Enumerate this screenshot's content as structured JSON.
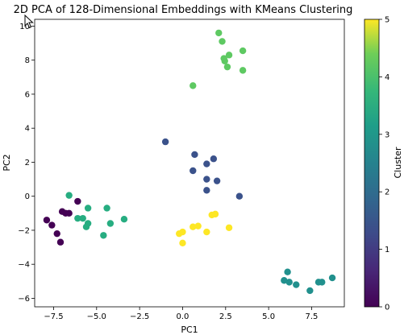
{
  "chart_data": {
    "type": "scatter",
    "title": "2D PCA of 128-Dimensional Embeddings with KMeans Clustering",
    "xlabel": "PC1",
    "ylabel": "PC2",
    "xlim": [
      -8.6,
      9.4
    ],
    "ylim": [
      -6.5,
      10.4
    ],
    "xticks": [
      -7.5,
      -5.0,
      -2.5,
      0.0,
      2.5,
      5.0,
      7.5
    ],
    "xtick_labels": [
      "−7.5",
      "−5.0",
      "−2.5",
      "0.0",
      "2.5",
      "5.0",
      "7.5"
    ],
    "yticks": [
      -6,
      -4,
      -2,
      0,
      2,
      4,
      6,
      8,
      10
    ],
    "ytick_labels": [
      "−6",
      "−4",
      "−2",
      "0",
      "2",
      "4",
      "6",
      "8",
      "10"
    ],
    "grid": false,
    "colorbar": {
      "label": "Cluster",
      "range": [
        0,
        5
      ],
      "ticks": [
        0,
        1,
        2,
        3,
        4,
        5
      ],
      "tick_labels": [
        "0",
        "1",
        "2",
        "3",
        "4",
        "5"
      ],
      "colormap": "viridis"
    },
    "points": [
      {
        "x": -7.9,
        "y": -1.4,
        "cluster": 0
      },
      {
        "x": -7.6,
        "y": -1.7,
        "cluster": 0
      },
      {
        "x": -7.3,
        "y": -2.2,
        "cluster": 0
      },
      {
        "x": -7.1,
        "y": -2.7,
        "cluster": 0
      },
      {
        "x": -7.0,
        "y": -0.9,
        "cluster": 0
      },
      {
        "x": -6.8,
        "y": -1.0,
        "cluster": 0
      },
      {
        "x": -6.6,
        "y": -1.0,
        "cluster": 0
      },
      {
        "x": -6.1,
        "y": -0.3,
        "cluster": 0
      },
      {
        "x": -6.6,
        "y": 0.05,
        "cluster": 3
      },
      {
        "x": -6.1,
        "y": -1.3,
        "cluster": 3
      },
      {
        "x": -5.8,
        "y": -1.3,
        "cluster": 3
      },
      {
        "x": -5.6,
        "y": -1.8,
        "cluster": 3
      },
      {
        "x": -5.5,
        "y": -1.6,
        "cluster": 3
      },
      {
        "x": -5.5,
        "y": -0.7,
        "cluster": 3
      },
      {
        "x": -4.6,
        "y": -2.3,
        "cluster": 3
      },
      {
        "x": -4.4,
        "y": -0.7,
        "cluster": 3
      },
      {
        "x": -4.2,
        "y": -1.6,
        "cluster": 3
      },
      {
        "x": -3.4,
        "y": -1.35,
        "cluster": 3
      },
      {
        "x": -1.0,
        "y": 3.2,
        "cluster": 1
      },
      {
        "x": 0.7,
        "y": 2.45,
        "cluster": 1
      },
      {
        "x": 0.6,
        "y": 1.5,
        "cluster": 1
      },
      {
        "x": 1.4,
        "y": 1.9,
        "cluster": 1
      },
      {
        "x": 1.8,
        "y": 2.2,
        "cluster": 1
      },
      {
        "x": 1.4,
        "y": 1.0,
        "cluster": 1
      },
      {
        "x": 2.0,
        "y": 0.9,
        "cluster": 1
      },
      {
        "x": 1.4,
        "y": 0.35,
        "cluster": 1
      },
      {
        "x": 3.3,
        "y": 0.0,
        "cluster": 1
      },
      {
        "x": -0.2,
        "y": -2.2,
        "cluster": 5
      },
      {
        "x": 0.0,
        "y": -2.1,
        "cluster": 5
      },
      {
        "x": 0.0,
        "y": -2.75,
        "cluster": 5
      },
      {
        "x": 0.6,
        "y": -1.8,
        "cluster": 5
      },
      {
        "x": 0.9,
        "y": -1.75,
        "cluster": 5
      },
      {
        "x": 1.4,
        "y": -2.1,
        "cluster": 5
      },
      {
        "x": 1.7,
        "y": -1.1,
        "cluster": 5
      },
      {
        "x": 1.9,
        "y": -1.05,
        "cluster": 5
      },
      {
        "x": 2.7,
        "y": -1.85,
        "cluster": 5
      },
      {
        "x": 0.6,
        "y": 6.5,
        "cluster": 4
      },
      {
        "x": 2.1,
        "y": 9.6,
        "cluster": 4
      },
      {
        "x": 2.3,
        "y": 9.1,
        "cluster": 4
      },
      {
        "x": 2.4,
        "y": 8.1,
        "cluster": 4
      },
      {
        "x": 2.45,
        "y": 7.95,
        "cluster": 4
      },
      {
        "x": 2.6,
        "y": 7.6,
        "cluster": 4
      },
      {
        "x": 2.7,
        "y": 8.3,
        "cluster": 4
      },
      {
        "x": 3.5,
        "y": 8.55,
        "cluster": 4
      },
      {
        "x": 3.5,
        "y": 7.4,
        "cluster": 4
      },
      {
        "x": 5.9,
        "y": -4.95,
        "cluster": 2
      },
      {
        "x": 6.1,
        "y": -4.45,
        "cluster": 2
      },
      {
        "x": 6.2,
        "y": -5.05,
        "cluster": 2
      },
      {
        "x": 6.6,
        "y": -5.2,
        "cluster": 2
      },
      {
        "x": 7.4,
        "y": -5.55,
        "cluster": 2
      },
      {
        "x": 7.9,
        "y": -5.05,
        "cluster": 2
      },
      {
        "x": 8.1,
        "y": -5.05,
        "cluster": 2
      },
      {
        "x": 8.7,
        "y": -4.8,
        "cluster": 2
      }
    ]
  },
  "colors": {
    "cluster_0": "#440154",
    "cluster_1": "#3b528b",
    "cluster_2": "#21908d",
    "cluster_3": "#27ad81",
    "cluster_4": "#5ec962",
    "cluster_5": "#fde725"
  }
}
